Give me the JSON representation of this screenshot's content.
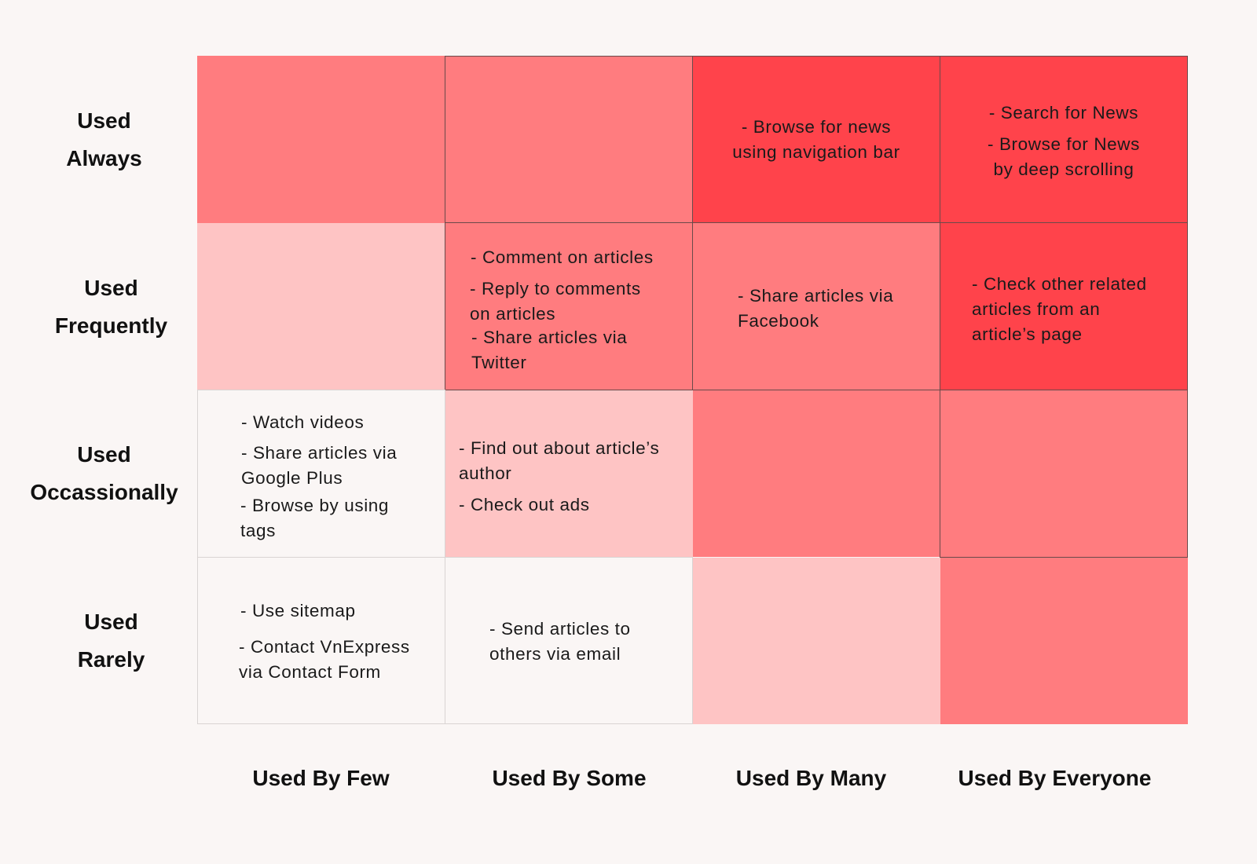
{
  "rows": [
    {
      "label": [
        "Used",
        "Always"
      ]
    },
    {
      "label": [
        "Used",
        "Frequently"
      ]
    },
    {
      "label": [
        "Used",
        "Occassionally"
      ]
    },
    {
      "label": [
        "Used",
        "Rarely"
      ]
    }
  ],
  "columns": [
    {
      "label": "Used By Few"
    },
    {
      "label": "Used By Some"
    },
    {
      "label": "Used By Many"
    },
    {
      "label": "Used By Everyone"
    }
  ],
  "colors": {
    "level_0": "#faf6f5",
    "level_1": "#fec4c4",
    "level_2": "#ff7c7f",
    "level_3": "#ff434b"
  },
  "cells": [
    [
      {
        "level": 2,
        "items": []
      },
      {
        "level": 2,
        "items": []
      },
      {
        "level": 3,
        "items": [
          [
            "- Browse for news",
            "using navigation bar"
          ]
        ]
      },
      {
        "level": 3,
        "items": [
          [
            "- Search for News"
          ],
          [
            "- Browse for News",
            "by deep scrolling"
          ]
        ]
      }
    ],
    [
      {
        "level": 1,
        "items": []
      },
      {
        "level": 2,
        "items": [
          [
            "- Comment on articles"
          ],
          [
            "- Reply to comments",
            "on articles"
          ],
          [
            "- Share articles via",
            "Twitter"
          ]
        ]
      },
      {
        "level": 2,
        "items": [
          [
            "- Share articles via",
            "Facebook"
          ]
        ]
      },
      {
        "level": 3,
        "items": [
          [
            "- Check other related",
            "articles from an",
            "article’s page"
          ]
        ]
      }
    ],
    [
      {
        "level": 0,
        "items": [
          [
            "- Watch videos"
          ],
          [
            "- Share articles via",
            "Google Plus"
          ],
          [
            "- Browse by  using",
            "tags"
          ]
        ]
      },
      {
        "level": 1,
        "items": [
          [
            "- Find out about article’s",
            "author"
          ],
          [
            "- Check out ads"
          ]
        ]
      },
      {
        "level": 2,
        "items": []
      },
      {
        "level": 2,
        "items": []
      }
    ],
    [
      {
        "level": 0,
        "items": [
          [
            "- Use sitemap"
          ],
          [
            "- Contact VnExpress",
            "via Contact Form"
          ]
        ]
      },
      {
        "level": 0,
        "items": [
          [
            "- Send articles to",
            "others via email"
          ]
        ]
      },
      {
        "level": 1,
        "items": []
      },
      {
        "level": 2,
        "items": []
      }
    ]
  ]
}
